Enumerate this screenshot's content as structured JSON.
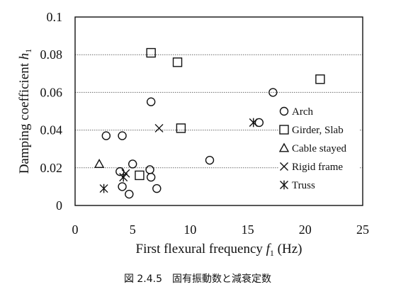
{
  "chart_data": {
    "type": "scatter",
    "xlabel_main": "First flexural frequency ",
    "xlabel_sym": "f",
    "xlabel_sub": "1",
    "xlabel_unit": " (Hz)",
    "ylabel_main": "Damping coefficient ",
    "ylabel_sym": "h",
    "ylabel_sub": "1",
    "xlim": [
      0,
      25
    ],
    "ylim": [
      0,
      0.1
    ],
    "xticks": [
      "0",
      "5",
      "10",
      "15",
      "20",
      "25"
    ],
    "yticks": [
      "0",
      "0.02",
      "0.04",
      "0.06",
      "0.08",
      "0.1"
    ],
    "grid": "horizontal",
    "legend_position": "right",
    "series": [
      {
        "name": "Arch",
        "marker": "circle",
        "points": [
          [
            2.7,
            0.037
          ],
          [
            4.1,
            0.037
          ],
          [
            6.6,
            0.055
          ],
          [
            17.2,
            0.06
          ],
          [
            16.0,
            0.044
          ],
          [
            11.7,
            0.024
          ],
          [
            5.0,
            0.022
          ],
          [
            6.5,
            0.019
          ],
          [
            3.9,
            0.018
          ],
          [
            6.6,
            0.015
          ],
          [
            4.1,
            0.01
          ],
          [
            7.1,
            0.009
          ],
          [
            4.7,
            0.006
          ]
        ]
      },
      {
        "name": "Girder, Slab",
        "marker": "square",
        "points": [
          [
            6.6,
            0.081
          ],
          [
            8.9,
            0.076
          ],
          [
            21.3,
            0.067
          ],
          [
            9.2,
            0.041
          ],
          [
            5.6,
            0.016
          ]
        ]
      },
      {
        "name": "Cable stayed",
        "marker": "triangle",
        "points": [
          [
            2.1,
            0.022
          ]
        ]
      },
      {
        "name": "Rigid frame",
        "marker": "x",
        "points": [
          [
            7.3,
            0.041
          ],
          [
            4.4,
            0.017
          ]
        ]
      },
      {
        "name": "Truss",
        "marker": "asterisk",
        "points": [
          [
            15.5,
            0.044
          ],
          [
            2.5,
            0.009
          ],
          [
            4.2,
            0.015
          ]
        ]
      }
    ]
  },
  "caption": "図 2.4.5　固有振動数と減衰定数"
}
